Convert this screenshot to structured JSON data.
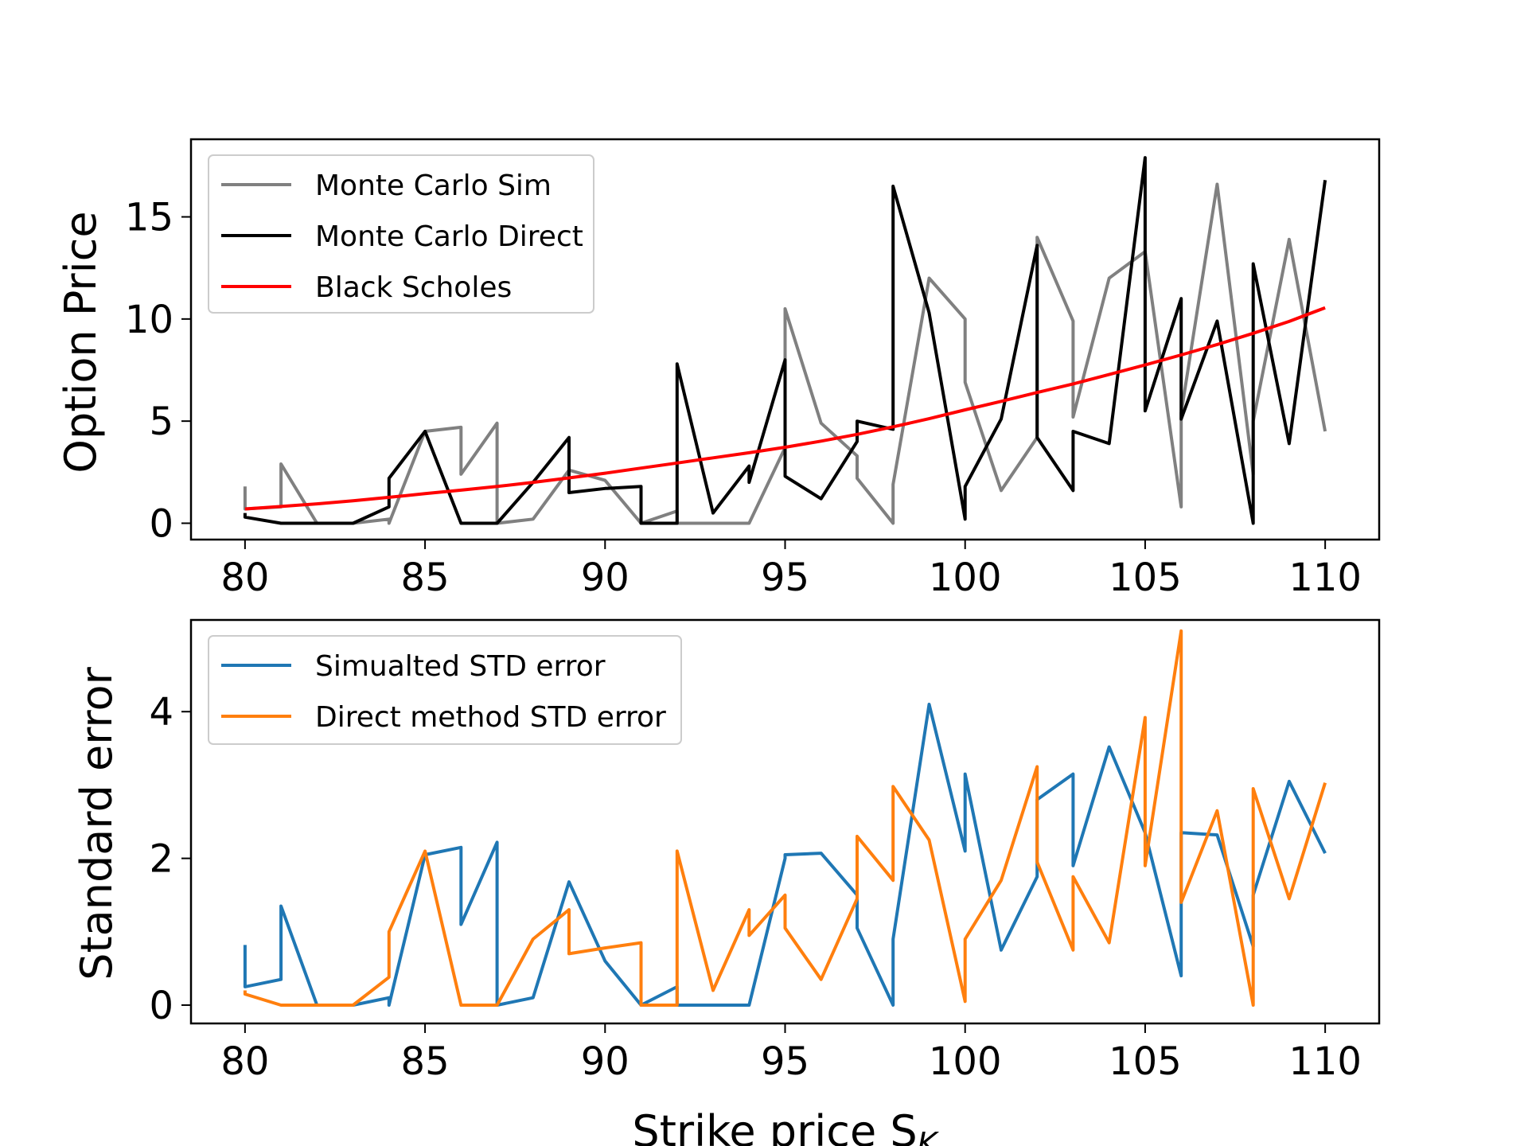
{
  "chart_data": [
    {
      "type": "line",
      "title": "",
      "xlabel": "",
      "ylabel": "Option Price",
      "xlim": [
        78.5,
        111.5
      ],
      "ylim": [
        -0.8,
        18.8
      ],
      "xticks": [
        80,
        85,
        90,
        95,
        100,
        105,
        110
      ],
      "yticks": [
        0,
        5,
        10,
        15
      ],
      "grid": false,
      "legend": "top-left",
      "series": [
        {
          "name": "Monte Carlo Sim",
          "color": "#808080",
          "x": [
            80,
            80,
            81,
            81,
            82,
            83,
            84,
            84,
            85,
            86,
            86,
            87,
            87,
            88,
            89,
            90,
            91,
            92,
            92,
            93,
            94,
            95,
            95,
            96,
            97,
            97,
            98,
            98,
            99,
            100,
            100,
            101,
            102,
            102,
            103,
            103,
            104,
            105,
            106,
            106,
            107,
            108,
            108,
            109,
            110
          ],
          "y": [
            1.8,
            0.7,
            0.8,
            2.9,
            0.0,
            0.0,
            0.2,
            0.0,
            4.5,
            4.7,
            2.4,
            4.9,
            0.0,
            0.2,
            2.6,
            2.1,
            0.0,
            0.6,
            0.0,
            0.0,
            0.0,
            3.7,
            10.5,
            4.9,
            3.3,
            2.2,
            0.0,
            1.9,
            12.0,
            10.0,
            6.9,
            1.6,
            4.2,
            14.0,
            9.9,
            5.2,
            12.0,
            13.3,
            0.8,
            5.4,
            16.6,
            2.4,
            5.0,
            13.9,
            4.5
          ]
        },
        {
          "name": "Monte Carlo Direct",
          "color": "#000000",
          "x": [
            80,
            80,
            81,
            82,
            83,
            84,
            84,
            85,
            86,
            87,
            88,
            89,
            89,
            90,
            91,
            91,
            92,
            92,
            93,
            94,
            94,
            95,
            95,
            96,
            97,
            97,
            98,
            98,
            99,
            100,
            100,
            101,
            102,
            102,
            103,
            103,
            104,
            105,
            105,
            106,
            106,
            107,
            108,
            108,
            109,
            110
          ],
          "y": [
            0.5,
            0.3,
            0.0,
            0.0,
            0.0,
            0.8,
            2.2,
            4.5,
            0.0,
            0.0,
            2.0,
            4.2,
            1.5,
            1.7,
            1.8,
            0.0,
            0.0,
            7.8,
            0.5,
            2.8,
            2.0,
            8.0,
            2.3,
            1.2,
            4.0,
            5.0,
            4.6,
            16.5,
            10.3,
            0.2,
            1.8,
            5.1,
            13.6,
            4.2,
            1.6,
            4.5,
            3.9,
            17.9,
            5.5,
            11.0,
            5.1,
            9.9,
            0.0,
            12.7,
            3.9,
            16.8
          ]
        },
        {
          "name": "Black Scholes",
          "color": "#ff0000",
          "x": [
            80,
            81,
            82,
            83,
            84,
            85,
            86,
            87,
            88,
            89,
            90,
            91,
            92,
            93,
            94,
            95,
            96,
            97,
            98,
            99,
            100,
            101,
            102,
            103,
            104,
            105,
            106,
            107,
            108,
            109,
            110
          ],
          "y": [
            0.7,
            0.82,
            0.95,
            1.1,
            1.27,
            1.45,
            1.62,
            1.8,
            2.0,
            2.22,
            2.45,
            2.7,
            2.95,
            3.2,
            3.45,
            3.72,
            4.02,
            4.35,
            4.72,
            5.12,
            5.55,
            5.97,
            6.4,
            6.82,
            7.28,
            7.75,
            8.24,
            8.75,
            9.3,
            9.88,
            10.55
          ]
        }
      ]
    },
    {
      "type": "line",
      "title": "",
      "xlabel": "Strike price S",
      "xlabel_subscript": "K",
      "ylabel": "Standard error",
      "xlim": [
        78.5,
        111.5
      ],
      "ylim": [
        -0.25,
        5.25
      ],
      "xticks": [
        80,
        85,
        90,
        95,
        100,
        105,
        110
      ],
      "yticks": [
        0,
        2,
        4
      ],
      "grid": false,
      "legend": "top-left",
      "series": [
        {
          "name": "Simualted STD error",
          "color": "#1f77b4",
          "x": [
            80,
            80,
            81,
            81,
            82,
            83,
            84,
            84,
            85,
            86,
            86,
            87,
            87,
            88,
            89,
            90,
            91,
            92,
            92,
            93,
            94,
            95,
            95,
            96,
            97,
            97,
            98,
            98,
            99,
            100,
            100,
            101,
            102,
            102,
            103,
            103,
            104,
            105,
            106,
            106,
            107,
            108,
            108,
            109,
            110
          ],
          "y": [
            0.82,
            0.25,
            0.35,
            1.35,
            0.0,
            0.0,
            0.1,
            0.0,
            2.05,
            2.15,
            1.1,
            2.22,
            0.0,
            0.1,
            1.68,
            0.6,
            0.0,
            0.25,
            0.0,
            0.0,
            0.0,
            2.0,
            2.05,
            2.07,
            1.5,
            1.05,
            0.0,
            0.9,
            4.1,
            2.1,
            3.15,
            0.75,
            1.75,
            2.8,
            3.15,
            1.9,
            3.52,
            2.35,
            0.4,
            2.35,
            2.32,
            0.8,
            1.5,
            3.05,
            2.07
          ]
        },
        {
          "name": "Direct method STD error",
          "color": "#ff7f0e",
          "x": [
            80,
            80,
            81,
            82,
            83,
            84,
            84,
            85,
            86,
            87,
            88,
            89,
            89,
            90,
            91,
            91,
            92,
            92,
            93,
            94,
            94,
            95,
            95,
            96,
            97,
            97,
            98,
            98,
            99,
            100,
            100,
            101,
            102,
            102,
            103,
            103,
            104,
            105,
            105,
            106,
            106,
            107,
            108,
            108,
            109,
            110
          ],
          "y": [
            0.2,
            0.15,
            0.0,
            0.0,
            0.0,
            0.38,
            1.0,
            2.1,
            0.0,
            0.0,
            0.9,
            1.3,
            0.7,
            0.78,
            0.85,
            0.0,
            0.0,
            2.1,
            0.2,
            1.3,
            0.95,
            1.5,
            1.05,
            0.35,
            1.45,
            2.3,
            1.7,
            2.98,
            2.25,
            0.05,
            0.9,
            1.7,
            3.25,
            1.95,
            0.75,
            1.75,
            0.85,
            3.92,
            1.9,
            5.1,
            1.4,
            2.65,
            0.0,
            2.95,
            1.45,
            3.03
          ]
        }
      ]
    }
  ]
}
